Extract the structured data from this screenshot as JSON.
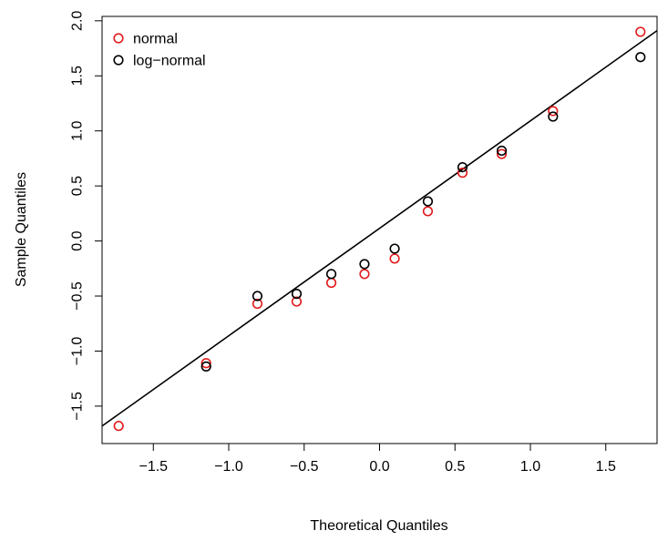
{
  "chart_data": {
    "type": "scatter",
    "title": "",
    "xlabel": "Theoretical Quantiles",
    "ylabel": "Sample Quantiles",
    "xlim": [
      -1.84,
      1.84
    ],
    "ylim": [
      -1.84,
      2.04
    ],
    "x_ticks": [
      -1.5,
      -1.0,
      -0.5,
      0.0,
      0.5,
      1.0,
      1.5
    ],
    "x_tick_labels": [
      "−1.5",
      "−1.0",
      "−0.5",
      "0.0",
      "0.5",
      "1.0",
      "1.5"
    ],
    "y_ticks": [
      -1.5,
      -1.0,
      -0.5,
      0.0,
      0.5,
      1.0,
      1.5,
      2.0
    ],
    "y_tick_labels": [
      "−1.5",
      "−1.0",
      "−0.5",
      "0.0",
      "0.5",
      "1.0",
      "1.5",
      "2.0"
    ],
    "grid": false,
    "legend_position": "top-left",
    "series": [
      {
        "name": "normal",
        "color": "#e31a1c",
        "marker": "open-circle",
        "x": [
          -1.73,
          -1.15,
          -0.81,
          -0.55,
          -0.32,
          -0.1,
          0.1,
          0.32,
          0.55,
          0.81,
          1.15,
          1.73
        ],
        "y": [
          -1.68,
          -1.11,
          -0.57,
          -0.55,
          -0.38,
          -0.3,
          -0.16,
          0.27,
          0.62,
          0.79,
          1.18,
          1.9
        ]
      },
      {
        "name": "log−normal",
        "color": "#000000",
        "marker": "open-circle",
        "x": [
          -1.15,
          -0.81,
          -0.55,
          -0.32,
          -0.1,
          0.1,
          0.32,
          0.55,
          0.81,
          1.15,
          1.73
        ],
        "y": [
          -1.14,
          -0.5,
          -0.48,
          -0.3,
          -0.21,
          -0.07,
          0.36,
          0.67,
          0.82,
          1.13,
          1.67
        ]
      }
    ],
    "reference_line": {
      "color": "#000000",
      "intercept": 0.115,
      "slope": 0.976
    }
  }
}
